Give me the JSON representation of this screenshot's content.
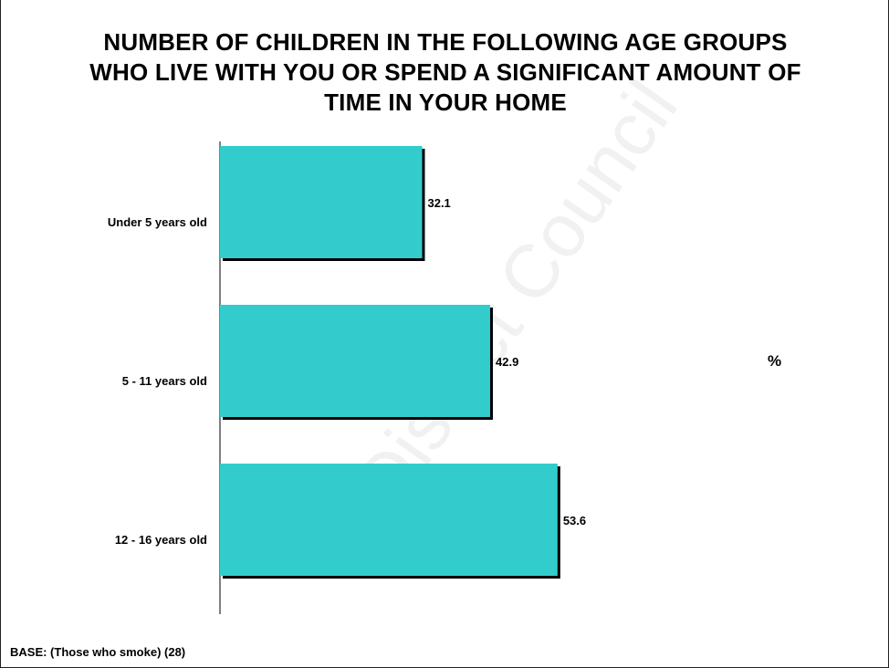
{
  "chart_data": {
    "type": "bar",
    "orientation": "horizontal",
    "title_lines": [
      "NUMBER OF CHILDREN IN THE FOLLOWING AGE GROUPS",
      "WHO LIVE WITH YOU OR SPEND A SIGNIFICANT AMOUNT OF",
      "TIME IN YOUR HOME"
    ],
    "categories": [
      "Under 5 years old",
      "5 - 11 years old",
      "12 - 16 years old"
    ],
    "values": [
      32.1,
      42.9,
      53.6
    ],
    "value_labels": [
      "32.1",
      "42.9",
      "53.6"
    ],
    "unit_label": "%",
    "xlim": [
      0,
      100
    ],
    "grid": false,
    "legend": "none",
    "bar_color": "#33CCCC",
    "shadow_color": "#000000"
  },
  "footer": {
    "base_note": "BASE: (Those who smoke) (28)"
  },
  "watermark": {
    "text": "District Council"
  }
}
